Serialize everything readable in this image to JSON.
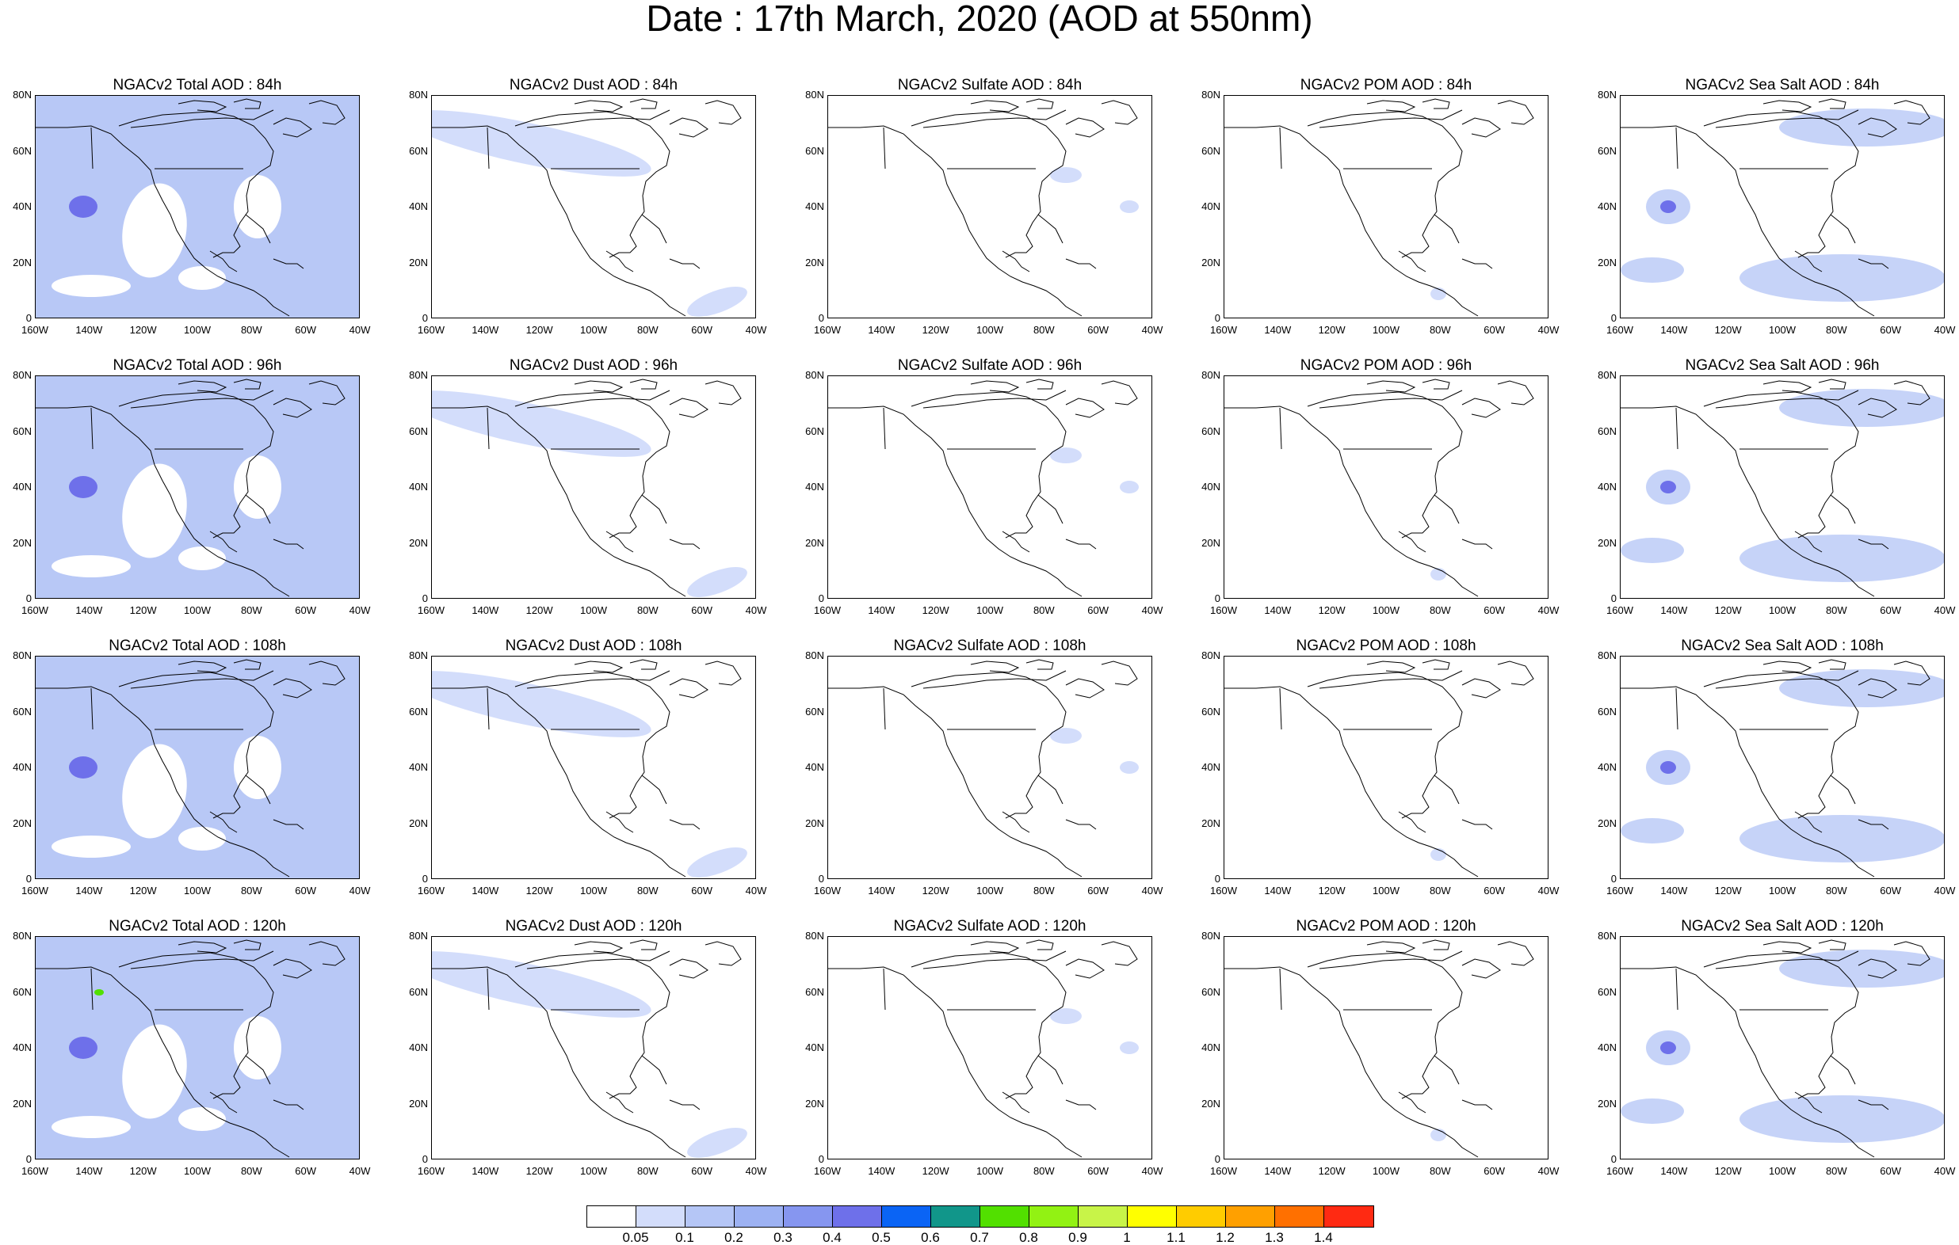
{
  "title": "Date : 17th March, 2020 (AOD at 550nm)",
  "lat_labels": [
    "80N",
    "60N",
    "40N",
    "20N",
    "0"
  ],
  "lon_labels": [
    "160W",
    "140W",
    "120W",
    "100W",
    "80W",
    "60W",
    "40W"
  ],
  "panel_titles": [
    [
      "NGACv2 Total AOD : 84h",
      "NGACv2 Dust AOD : 84h",
      "NGACv2 Sulfate AOD : 84h",
      "NGACv2 POM AOD : 84h",
      "NGACv2 Sea Salt AOD : 84h"
    ],
    [
      "NGACv2 Total AOD : 96h",
      "NGACv2 Dust AOD : 96h",
      "NGACv2 Sulfate AOD : 96h",
      "NGACv2 POM AOD : 96h",
      "NGACv2 Sea Salt AOD : 96h"
    ],
    [
      "NGACv2 Total AOD : 108h",
      "NGACv2 Dust AOD : 108h",
      "NGACv2 Sulfate AOD : 108h",
      "NGACv2 POM AOD : 108h",
      "NGACv2 Sea Salt AOD : 108h"
    ],
    [
      "NGACv2 Total AOD : 120h",
      "NGACv2 Dust AOD : 120h",
      "NGACv2 Sulfate AOD : 120h",
      "NGACv2 POM AOD : 120h",
      "NGACv2 Sea Salt  AOD : 120h"
    ]
  ],
  "colorbar": {
    "colors": [
      "#ffffff",
      "#d3ddfb",
      "#b5c6f6",
      "#9db2f3",
      "#8696f0",
      "#6e70ea",
      "#0a64f5",
      "#11968a",
      "#52e000",
      "#92f213",
      "#c8f448",
      "#ffff00",
      "#ffcc00",
      "#ffa000",
      "#ff7000",
      "#ff2a12"
    ],
    "labels": [
      "0.05",
      "0.1",
      "0.2",
      "0.3",
      "0.4",
      "0.5",
      "0.6",
      "0.7",
      "0.8",
      "0.9",
      "1",
      "1.1",
      "1.2",
      "1.3",
      "1.4"
    ]
  },
  "panel_fill_colors": {
    "total": "#b8c8f6",
    "dust": "#d3ddfb",
    "sulfate": "#d3ddfb",
    "pom": "#d3ddfb",
    "seasalt": "#c6d3f8",
    "hotspot": "#6e70ea",
    "hotspot_peak": "#52e000"
  }
}
